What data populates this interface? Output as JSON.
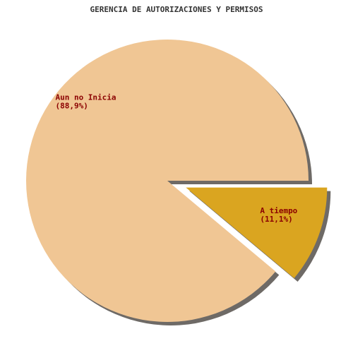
{
  "chart_data": {
    "type": "pie",
    "title": "GERENCIA DE AUTORIZACIONES Y PERMISOS",
    "slices": [
      {
        "label": "Aun no Inicia",
        "percent_label": "(88,9%)",
        "value": 88.9,
        "color": "#F0C694",
        "exploded": false
      },
      {
        "label": "A tiempo",
        "percent_label": "(11,1%)",
        "value": 11.1,
        "color": "#DAA520",
        "exploded": true
      }
    ],
    "label_color": "#8B0000",
    "shadow_color": "#6E6A66",
    "legend": "none",
    "start": "3 o'clock, clockwise"
  }
}
